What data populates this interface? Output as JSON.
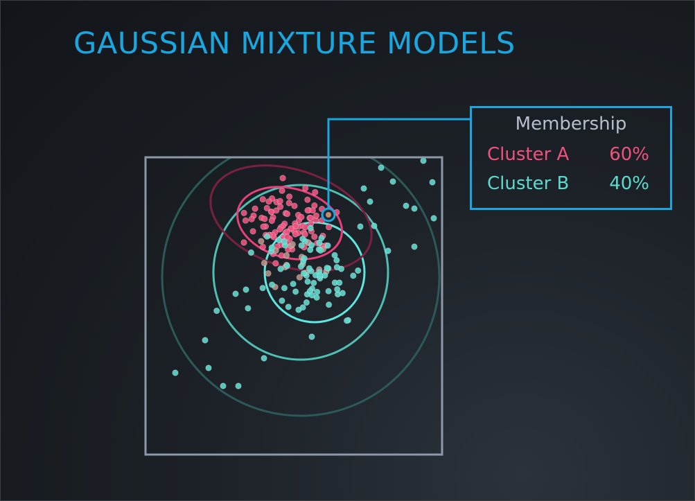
{
  "title": "GAUSSIAN MIXTURE MODELS",
  "legend": {
    "title": "Membership",
    "rows": [
      {
        "name": "Cluster A",
        "value": "60%",
        "color": "#f0527e"
      },
      {
        "name": "Cluster B",
        "value": "40%",
        "color": "#5ed9cd"
      }
    ]
  },
  "colors": {
    "accent": "#1aa7e0",
    "cluster_a": "#f0527e",
    "cluster_b": "#5ed9cd",
    "plot_frame": "#8d98a8"
  }
}
